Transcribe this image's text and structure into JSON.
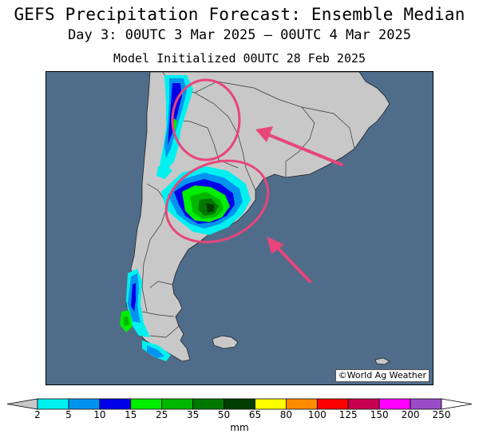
{
  "header": {
    "title": "GEFS Precipitation Forecast: Ensemble Median",
    "valid_period": "Day 3: 00UTC 3 Mar 2025 — 00UTC 4 Mar 2025",
    "init": "Model Initialized 00UTC 28 Feb 2025"
  },
  "map": {
    "credit": "©World Ag Weather",
    "ocean_color": "#4f6d8b",
    "land_color": "#c8c8c8",
    "annotation_color": "#e8457a"
  },
  "legend": {
    "units": "mm",
    "ticks": [
      "2",
      "5",
      "10",
      "15",
      "25",
      "35",
      "50",
      "65",
      "80",
      "100",
      "125",
      "150",
      "200",
      "250"
    ],
    "colors": [
      "#00f0f0",
      "#0094f0",
      "#0000e8",
      "#00ee00",
      "#00b800",
      "#007800",
      "#003c00",
      "#ffff00",
      "#ff8c00",
      "#ff0000",
      "#c80050",
      "#ff00ff",
      "#9a4dc8"
    ]
  }
}
